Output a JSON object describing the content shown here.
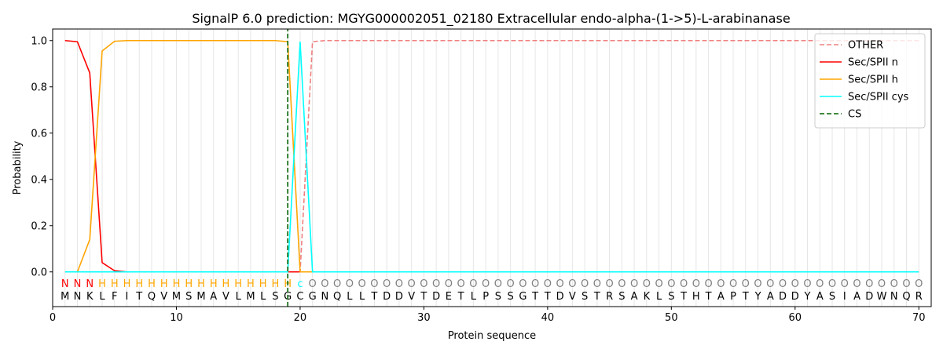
{
  "chart_data": {
    "type": "line",
    "title": "SignalP 6.0 prediction: MGYG000002051_02180 Extracellular endo-alpha-(1->5)-L-arabinanase",
    "xlabel": "Protein sequence",
    "ylabel": "Probability",
    "xlim": [
      0,
      71
    ],
    "ylim": [
      -0.15,
      1.05
    ],
    "xticks": [
      0,
      10,
      20,
      30,
      40,
      50,
      60,
      70
    ],
    "yticks": [
      0.0,
      0.2,
      0.4,
      0.6,
      0.8,
      1.0
    ],
    "xtick_labels": [
      "0",
      "10",
      "20",
      "30",
      "40",
      "50",
      "60",
      "70"
    ],
    "ytick_labels": [
      "0.0",
      "0.2",
      "0.4",
      "0.6",
      "0.8",
      "1.0"
    ],
    "vertical_gridlines": "at each residue position 1-70",
    "legend_position": "top-right",
    "sequence": "MNKLFITQVMSMAVLMLSGCGNQLLTDDVTDETLPSSGTTDVSTRSAKLSTHTAPTYADDYASIADWNQR",
    "labels": "NNNHHHHHHHHHHHHHHHHcOOOOOOOOOOOOOOOOOOOOOOOOOOOOOOOOOOOOOOOOOOOOOOOOOO",
    "label_colors": {
      "N": "#ff0000",
      "H": "#ffa500",
      "c": "#00ffff",
      "O": "#808080"
    },
    "cleavage_site": 19,
    "series": [
      {
        "name": "OTHER",
        "color": "#f08080",
        "dash": "dashed",
        "x": [
          1,
          2,
          3,
          4,
          5,
          6,
          7,
          8,
          9,
          10,
          11,
          12,
          13,
          14,
          15,
          16,
          17,
          18,
          19,
          20,
          21,
          22,
          70
        ],
        "values": [
          0,
          0,
          0,
          0,
          0,
          0,
          0,
          0,
          0,
          0,
          0,
          0,
          0,
          0,
          0,
          0,
          0,
          0,
          0,
          0,
          0.995,
          1.0,
          1.0
        ]
      },
      {
        "name": "Sec/SPII n",
        "color": "#ff0000",
        "dash": "solid",
        "x": [
          1,
          2,
          3,
          4,
          5,
          6,
          19,
          20,
          70
        ],
        "values": [
          1.0,
          0.995,
          0.86,
          0.04,
          0.005,
          0,
          0,
          0,
          0
        ]
      },
      {
        "name": "Sec/SPII h",
        "color": "#ffa500",
        "dash": "solid",
        "x": [
          1,
          2,
          3,
          4,
          5,
          6,
          7,
          8,
          9,
          10,
          11,
          12,
          13,
          14,
          15,
          16,
          17,
          18,
          19,
          20,
          21,
          70
        ],
        "values": [
          0,
          0,
          0.14,
          0.955,
          0.997,
          1.0,
          1.0,
          1.0,
          1.0,
          1.0,
          1.0,
          1.0,
          1.0,
          1.0,
          1.0,
          1.0,
          1.0,
          1.0,
          0.995,
          0,
          0,
          0
        ]
      },
      {
        "name": "Sec/SPII cys",
        "color": "#00ffff",
        "dash": "solid",
        "x": [
          1,
          18,
          19,
          20,
          21,
          22,
          70
        ],
        "values": [
          0,
          0,
          0,
          0.995,
          0,
          0,
          0
        ]
      },
      {
        "name": "CS",
        "color": "#006400",
        "dash": "dashed",
        "kind": "vline",
        "x": [
          19,
          19
        ],
        "values": [
          -0.15,
          1.05
        ]
      }
    ]
  }
}
